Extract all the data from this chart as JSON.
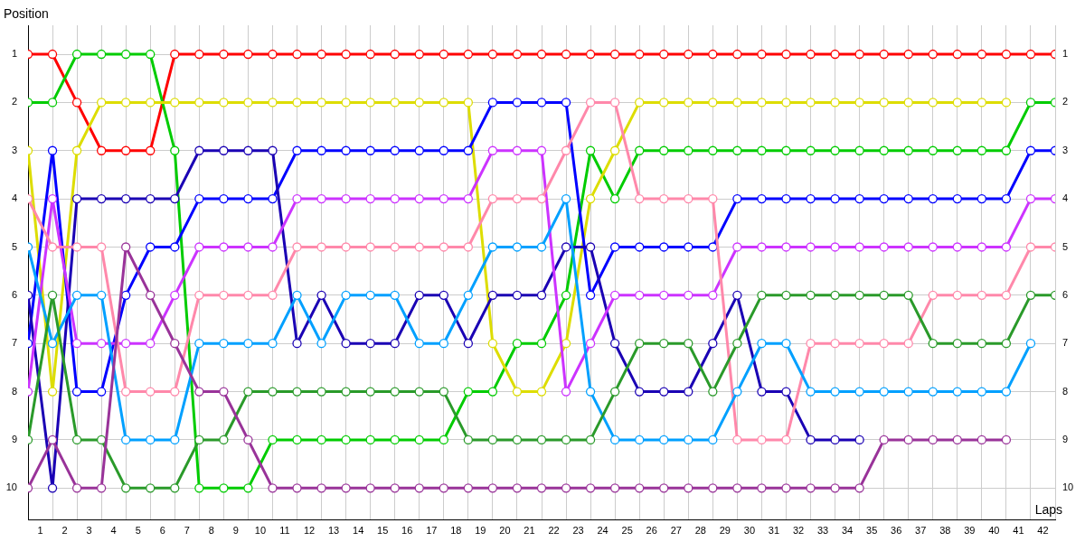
{
  "chart_data": {
    "type": "line",
    "xlabel": "Laps",
    "ylabel": "Position",
    "x": [
      0,
      1,
      2,
      3,
      4,
      5,
      6,
      7,
      8,
      9,
      10,
      11,
      12,
      13,
      14,
      15,
      16,
      17,
      18,
      19,
      20,
      21,
      22,
      23,
      24,
      25,
      26,
      27,
      28,
      29,
      30,
      31,
      32,
      33,
      34,
      35,
      36,
      37,
      38,
      39,
      40,
      41,
      42
    ],
    "xlim": [
      0,
      42
    ],
    "xticks": [
      {
        "value": 0,
        "label": null
      },
      {
        "value": 0.5,
        "label": "1"
      },
      {
        "value": 1,
        "label": null
      },
      {
        "value": 1.5,
        "label": "2"
      },
      {
        "value": 2,
        "label": null
      },
      {
        "value": 2.5,
        "label": "3"
      },
      {
        "value": 3,
        "label": null
      },
      {
        "value": 3.5,
        "label": "4"
      },
      {
        "value": 4,
        "label": null
      },
      {
        "value": 4.5,
        "label": "5"
      },
      {
        "value": 5,
        "label": null
      },
      {
        "value": 5.5,
        "label": "6"
      },
      {
        "value": 6,
        "label": null
      },
      {
        "value": 6.5,
        "label": "7"
      },
      {
        "value": 7,
        "label": null
      },
      {
        "value": 7.5,
        "label": "8"
      },
      {
        "value": 8,
        "label": null
      },
      {
        "value": 8.5,
        "label": "9"
      },
      {
        "value": 9,
        "label": null
      },
      {
        "value": 9.5,
        "label": "10"
      },
      {
        "value": 10,
        "label": null
      },
      {
        "value": 10.5,
        "label": "11"
      },
      {
        "value": 11,
        "label": null
      },
      {
        "value": 11.5,
        "label": "12"
      },
      {
        "value": 12,
        "label": null
      },
      {
        "value": 12.5,
        "label": "13"
      },
      {
        "value": 13,
        "label": null
      },
      {
        "value": 13.5,
        "label": "14"
      },
      {
        "value": 14,
        "label": null
      },
      {
        "value": 14.5,
        "label": "15"
      },
      {
        "value": 15,
        "label": null
      },
      {
        "value": 15.5,
        "label": "16"
      },
      {
        "value": 16,
        "label": null
      },
      {
        "value": 16.5,
        "label": "17"
      },
      {
        "value": 17,
        "label": null
      },
      {
        "value": 17.5,
        "label": "18"
      },
      {
        "value": 18,
        "label": null
      },
      {
        "value": 18.5,
        "label": "19"
      },
      {
        "value": 19,
        "label": null
      },
      {
        "value": 19.5,
        "label": "20"
      },
      {
        "value": 20,
        "label": null
      },
      {
        "value": 20.5,
        "label": "21"
      },
      {
        "value": 21,
        "label": null
      },
      {
        "value": 21.5,
        "label": "22"
      },
      {
        "value": 22,
        "label": null
      },
      {
        "value": 22.5,
        "label": "23"
      },
      {
        "value": 23,
        "label": null
      },
      {
        "value": 23.5,
        "label": "24"
      },
      {
        "value": 24,
        "label": null
      },
      {
        "value": 24.5,
        "label": "25"
      },
      {
        "value": 25,
        "label": null
      },
      {
        "value": 25.5,
        "label": "26"
      },
      {
        "value": 26,
        "label": null
      },
      {
        "value": 26.5,
        "label": "27"
      },
      {
        "value": 27,
        "label": null
      },
      {
        "value": 27.5,
        "label": "28"
      },
      {
        "value": 28,
        "label": null
      },
      {
        "value": 28.5,
        "label": "29"
      },
      {
        "value": 29,
        "label": null
      },
      {
        "value": 29.5,
        "label": "30"
      },
      {
        "value": 30,
        "label": null
      },
      {
        "value": 30.5,
        "label": "31"
      },
      {
        "value": 31,
        "label": null
      },
      {
        "value": 31.5,
        "label": "32"
      },
      {
        "value": 32,
        "label": null
      },
      {
        "value": 32.5,
        "label": "33"
      },
      {
        "value": 33,
        "label": null
      },
      {
        "value": 33.5,
        "label": "34"
      },
      {
        "value": 34,
        "label": null
      },
      {
        "value": 34.5,
        "label": "35"
      },
      {
        "value": 35,
        "label": null
      },
      {
        "value": 35.5,
        "label": "36"
      },
      {
        "value": 36,
        "label": null
      },
      {
        "value": 36.5,
        "label": "37"
      },
      {
        "value": 37,
        "label": null
      },
      {
        "value": 37.5,
        "label": "38"
      },
      {
        "value": 38,
        "label": null
      },
      {
        "value": 38.5,
        "label": "39"
      },
      {
        "value": 39,
        "label": null
      },
      {
        "value": 39.5,
        "label": "40"
      },
      {
        "value": 40,
        "label": null
      },
      {
        "value": 40.5,
        "label": "41"
      },
      {
        "value": 41,
        "label": null
      },
      {
        "value": 41.5,
        "label": "42"
      },
      {
        "value": 42,
        "label": null
      }
    ],
    "ylim": [
      10.65,
      0.4
    ],
    "yticks": [
      1,
      2,
      3,
      4,
      5,
      6,
      7,
      8,
      9,
      10
    ],
    "y2lim": [
      10.65,
      0.4
    ],
    "y2ticks": [
      1,
      2,
      3,
      4,
      5,
      6,
      7,
      8,
      9,
      10
    ],
    "grid": true,
    "legend": false,
    "marker": "circle",
    "line_style": "solid",
    "series": [
      {
        "color": "#993399",
        "values": [
          10,
          9,
          10,
          10,
          5,
          6,
          7,
          8,
          8,
          9,
          10,
          10,
          10,
          10,
          10,
          10,
          10,
          10,
          10,
          10,
          10,
          10,
          10,
          10,
          10,
          10,
          10,
          10,
          10,
          10,
          10,
          10,
          10,
          10,
          10,
          9,
          9,
          9,
          9,
          9,
          9,
          null,
          null
        ]
      },
      {
        "color": "#2a9a2a",
        "values": [
          9,
          6,
          9,
          9,
          10,
          10,
          10,
          9,
          9,
          8,
          8,
          8,
          8,
          8,
          8,
          8,
          8,
          8,
          9,
          9,
          9,
          9,
          9,
          9,
          8,
          7,
          7,
          7,
          8,
          7,
          6,
          6,
          6,
          6,
          6,
          6,
          6,
          7,
          7,
          7,
          7,
          6,
          6
        ]
      },
      {
        "color": "#00a0ff",
        "values": [
          5,
          7,
          6,
          6,
          9,
          9,
          9,
          7,
          7,
          7,
          7,
          6,
          7,
          6,
          6,
          6,
          7,
          7,
          6,
          5,
          5,
          5,
          4,
          8,
          9,
          9,
          9,
          9,
          9,
          8,
          7,
          7,
          8,
          8,
          8,
          8,
          8,
          8,
          8,
          8,
          8,
          7,
          null
        ]
      },
      {
        "color": "#ff88aa",
        "values": [
          4,
          5,
          5,
          5,
          8,
          8,
          8,
          6,
          6,
          6,
          6,
          5,
          5,
          5,
          5,
          5,
          5,
          5,
          5,
          4,
          4,
          4,
          3,
          2,
          2,
          4,
          4,
          4,
          4,
          9,
          9,
          9,
          7,
          7,
          7,
          7,
          7,
          6,
          6,
          6,
          6,
          5,
          5
        ]
      },
      {
        "color": "#cc33ff",
        "values": [
          8,
          4,
          7,
          7,
          7,
          7,
          6,
          5,
          5,
          5,
          5,
          4,
          4,
          4,
          4,
          4,
          4,
          4,
          4,
          3,
          3,
          3,
          8,
          7,
          6,
          6,
          6,
          6,
          6,
          5,
          5,
          5,
          5,
          5,
          5,
          5,
          5,
          5,
          5,
          5,
          5,
          4,
          4
        ]
      },
      {
        "color": "#1a00b4",
        "values": [
          6,
          10,
          4,
          4,
          4,
          4,
          4,
          3,
          3,
          3,
          3,
          7,
          6,
          7,
          7,
          7,
          6,
          6,
          7,
          6,
          6,
          6,
          5,
          5,
          7,
          8,
          8,
          8,
          7,
          6,
          8,
          8,
          9,
          9,
          9,
          null,
          null,
          null,
          null,
          null,
          null,
          null,
          null
        ]
      },
      {
        "color": "#0000ff",
        "values": [
          7,
          3,
          8,
          8,
          6,
          5,
          5,
          4,
          4,
          4,
          4,
          3,
          3,
          3,
          3,
          3,
          3,
          3,
          3,
          2,
          2,
          2,
          2,
          6,
          5,
          5,
          5,
          5,
          5,
          4,
          4,
          4,
          4,
          4,
          4,
          4,
          4,
          4,
          4,
          4,
          4,
          3,
          3
        ]
      },
      {
        "color": "#dddd00",
        "values": [
          3,
          8,
          3,
          2,
          2,
          2,
          2,
          2,
          2,
          2,
          2,
          2,
          2,
          2,
          2,
          2,
          2,
          2,
          2,
          7,
          8,
          8,
          7,
          4,
          3,
          2,
          2,
          2,
          2,
          2,
          2,
          2,
          2,
          2,
          2,
          2,
          2,
          2,
          2,
          2,
          2,
          null,
          null
        ]
      },
      {
        "color": "#00cc00",
        "values": [
          2,
          2,
          1,
          1,
          1,
          1,
          3,
          10,
          10,
          10,
          9,
          9,
          9,
          9,
          9,
          9,
          9,
          9,
          8,
          8,
          7,
          7,
          6,
          3,
          4,
          3,
          3,
          3,
          3,
          3,
          3,
          3,
          3,
          3,
          3,
          3,
          3,
          3,
          3,
          3,
          3,
          2,
          2
        ]
      },
      {
        "color": "#ff0000",
        "values": [
          1,
          1,
          2,
          3,
          3,
          3,
          1,
          1,
          1,
          1,
          1,
          1,
          1,
          1,
          1,
          1,
          1,
          1,
          1,
          1,
          1,
          1,
          1,
          1,
          1,
          1,
          1,
          1,
          1,
          1,
          1,
          1,
          1,
          1,
          1,
          1,
          1,
          1,
          1,
          1,
          1,
          1,
          1
        ]
      }
    ]
  }
}
